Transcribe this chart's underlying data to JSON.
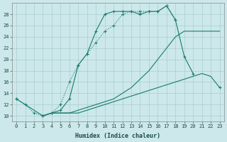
{
  "title": "",
  "xlabel": "Humidex (Indice chaleur)",
  "bg_color": "#cce8ea",
  "grid_color": "#aacdd0",
  "line_color": "#1a7a6e",
  "xlim": [
    -0.5,
    23.5
  ],
  "ylim": [
    9,
    30
  ],
  "xticks": [
    0,
    1,
    2,
    3,
    4,
    5,
    6,
    7,
    8,
    9,
    10,
    11,
    12,
    13,
    14,
    15,
    16,
    17,
    18,
    19,
    20,
    21,
    22,
    23
  ],
  "yticks": [
    10,
    12,
    14,
    16,
    18,
    20,
    22,
    24,
    26,
    28
  ],
  "line_dotted_x": [
    0,
    1,
    2,
    3,
    4,
    5,
    6,
    7,
    8,
    9,
    10,
    11,
    12,
    13,
    14,
    15,
    16,
    17,
    18
  ],
  "line_dotted_y": [
    13,
    12,
    10.5,
    10,
    10.5,
    12,
    16,
    19,
    21,
    23,
    25,
    26,
    28,
    28.5,
    28.5,
    28.5,
    28.5,
    29.5,
    27
  ],
  "line_top_x": [
    0,
    3,
    4,
    5,
    6,
    7,
    8,
    9,
    10,
    11,
    12,
    13,
    14,
    15,
    16,
    17,
    18,
    19,
    20,
    21,
    22,
    23
  ],
  "line_top_y": [
    13,
    10,
    10.5,
    11,
    13,
    19,
    21,
    25,
    28,
    28.5,
    28.5,
    28.5,
    28,
    28.5,
    28.5,
    29.5,
    27,
    20.5,
    17.5,
    null,
    null,
    15
  ],
  "line_mid_x": [
    3,
    4,
    5,
    6,
    7,
    8,
    9,
    10,
    11,
    12,
    13,
    14,
    15,
    16,
    17,
    18,
    19,
    20,
    21,
    22,
    23
  ],
  "line_mid_y": [
    10,
    10.5,
    10.5,
    10.5,
    11,
    11.5,
    12,
    12.5,
    13,
    14,
    15,
    16.5,
    18,
    20,
    22,
    24,
    25,
    25,
    25,
    25,
    25
  ],
  "line_low_x": [
    3,
    4,
    5,
    6,
    7,
    8,
    9,
    10,
    11,
    12,
    13,
    14,
    15,
    16,
    17,
    18,
    19,
    20,
    21,
    22,
    23
  ],
  "line_low_y": [
    10,
    10.5,
    10.5,
    10.5,
    10.5,
    11,
    11.5,
    12,
    12.5,
    13,
    13.5,
    14,
    14.5,
    15,
    15.5,
    16,
    16.5,
    17,
    17.5,
    17,
    15
  ]
}
